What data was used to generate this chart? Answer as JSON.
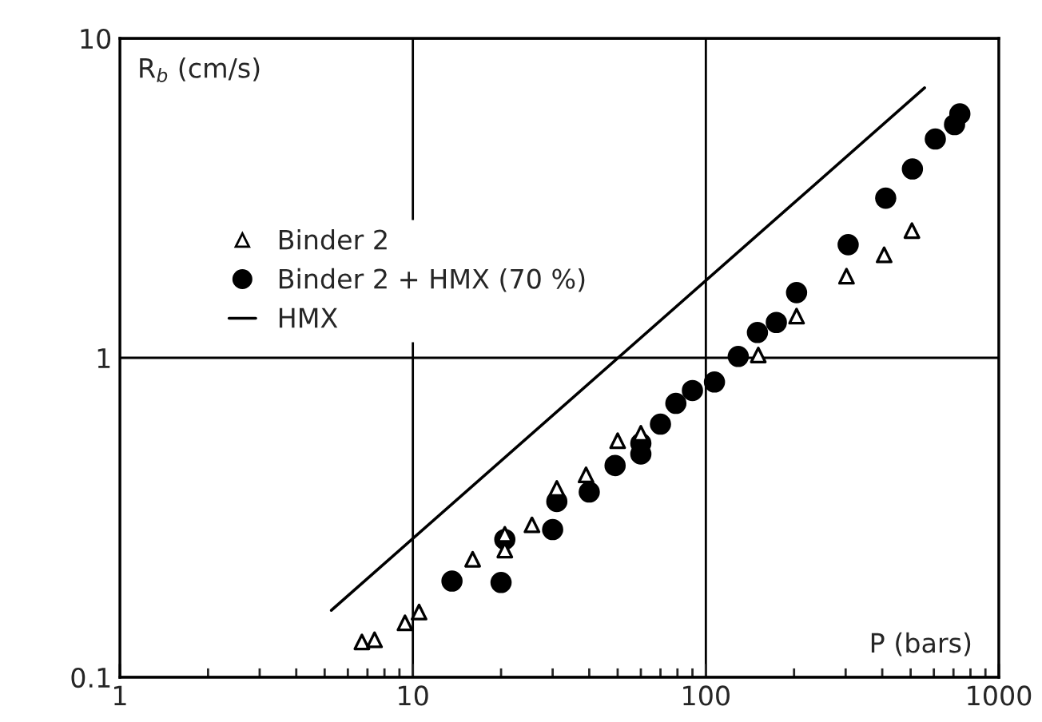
{
  "chart_data": {
    "type": "scatter",
    "xlabel": "P (bars)",
    "ylabel": "R$_{b}$ (cm/s)",
    "log": "xy",
    "xlim": [
      1,
      1000
    ],
    "ylim": [
      0.1,
      10
    ],
    "xticks": [
      1,
      10,
      100,
      1000
    ],
    "yticks": [
      0.1,
      1,
      10
    ],
    "grid": true,
    "legend": "left",
    "series": [
      {
        "name": "Binder 2",
        "color": "#000000",
        "marker": "triangle",
        "x": [
          6.7,
          7.4,
          9.4,
          10.5,
          16,
          20.6,
          20.6,
          25.5,
          31,
          39,
          50,
          60,
          151,
          204,
          302,
          406,
          505
        ],
        "values": [
          0.129,
          0.131,
          0.148,
          0.16,
          0.234,
          0.28,
          0.25,
          0.3,
          0.39,
          0.43,
          0.55,
          0.58,
          1.02,
          1.35,
          1.8,
          2.1,
          2.5
        ]
      },
      {
        "name": "Binder 2 + HMX (70 %)",
        "color": "#000000",
        "marker": "circle",
        "x": [
          13.6,
          20,
          20.6,
          30,
          31,
          40,
          49,
          60,
          60,
          70,
          79,
          90,
          107,
          129,
          150,
          174,
          204,
          306,
          411,
          507,
          607,
          706,
          736
        ],
        "values": [
          0.2,
          0.198,
          0.27,
          0.29,
          0.355,
          0.38,
          0.46,
          0.5,
          0.54,
          0.62,
          0.72,
          0.79,
          0.84,
          1.01,
          1.2,
          1.29,
          1.6,
          2.26,
          3.16,
          3.9,
          4.84,
          5.37,
          5.8
        ]
      },
      {
        "name": "HMX",
        "type": "line",
        "color": "#000000",
        "line_style": "solid",
        "x": [
          5.27,
          558
        ],
        "values": [
          0.162,
          7.0
        ]
      }
    ]
  }
}
